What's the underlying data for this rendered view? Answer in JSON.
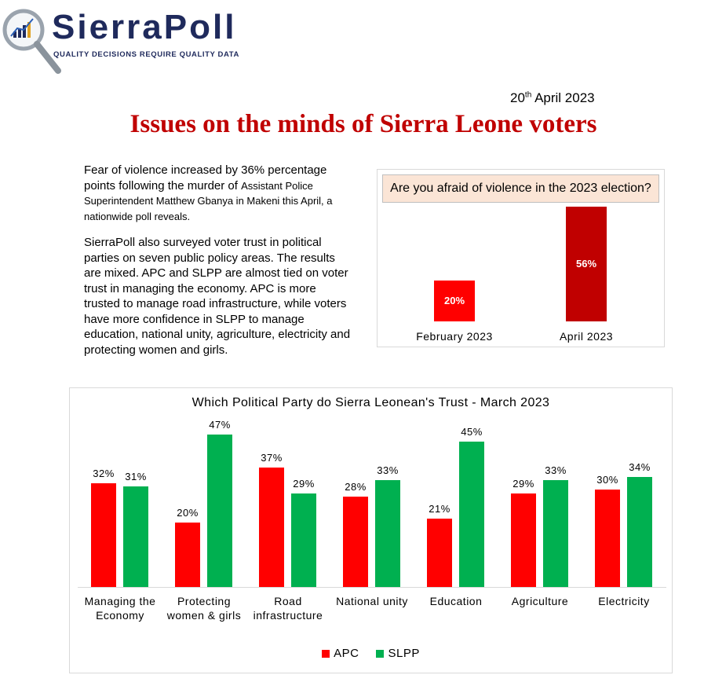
{
  "logo": {
    "name": "SierraPoll",
    "tagline": "QUALITY DECISIONS REQUIRE QUALITY DATA"
  },
  "date": {
    "day": "20",
    "suffix": "th",
    "rest": "April 2023"
  },
  "title": "Issues on the minds of Sierra Leone voters",
  "paragraphs": [
    [
      "Fear of violence increased by 36% percentage points following the murder of ",
      "Assistant Police Superintendent Matthew Gbanya in Makeni this April, a nationwide poll reveals."
    ],
    [
      "SierraPoll also surveyed voter trust in political parties on seven public policy areas. The results are mixed. APC and SLPP are almost tied on voter trust in managing the economy. APC is more trusted to manage road infrastructure, while voters have more confidence in SLPP to manage education, national unity, agriculture, electricity and protecting women and girls."
    ]
  ],
  "chart_data": [
    {
      "type": "bar",
      "title": "Are you afraid of violence in the 2023 election?",
      "categories": [
        "February 2023",
        "April 2023"
      ],
      "values": [
        20,
        56
      ],
      "value_labels": [
        "20%",
        "56%"
      ],
      "colors": [
        "#ff0000",
        "#c00000"
      ],
      "ylim": [
        0,
        60
      ]
    },
    {
      "type": "grouped_bar",
      "title": "Which Political Party do Sierra Leonean's Trust - March 2023",
      "categories": [
        "Managing the Economy",
        "Protecting women & girls",
        "Road infrastructure",
        "National unity",
        "Education",
        "Agriculture",
        "Electricity"
      ],
      "series": [
        {
          "name": "APC",
          "color": "#ff0000",
          "values": [
            32,
            20,
            37,
            28,
            21,
            29,
            30
          ],
          "value_labels": [
            "32%",
            "20%",
            "37%",
            "28%",
            "21%",
            "29%",
            "30%"
          ]
        },
        {
          "name": "SLPP",
          "color": "#00b050",
          "values": [
            31,
            47,
            29,
            33,
            45,
            33,
            34
          ],
          "value_labels": [
            "31%",
            "47%",
            "29%",
            "33%",
            "45%",
            "33%",
            "34%"
          ]
        }
      ],
      "ylim": [
        0,
        50
      ],
      "legend": "bottom"
    }
  ]
}
